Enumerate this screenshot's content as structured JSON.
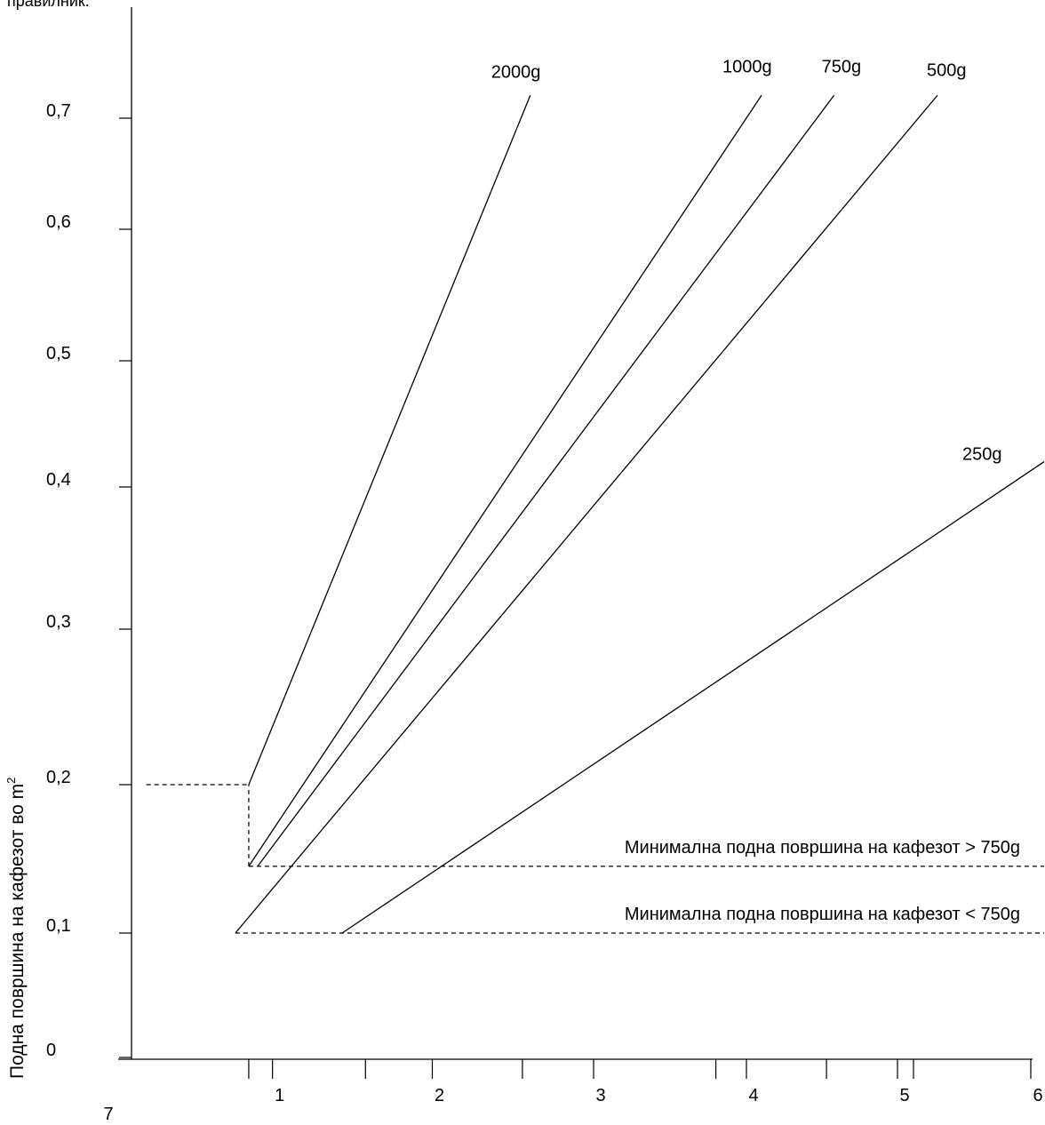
{
  "header_fragment": "правилник.",
  "chart_data": {
    "type": "line",
    "ylabel": "Подна површина на кафезот во m",
    "ylabel_superscript": "2",
    "ylim": [
      0,
      0.78
    ],
    "xlim": [
      0,
      6
    ],
    "y_ticks": [
      {
        "label": "0",
        "value": 0.0
      },
      {
        "label": "0,1",
        "value": 0.1
      },
      {
        "label": "0,2",
        "value": 0.2
      },
      {
        "label": "0,3",
        "value": 0.3
      },
      {
        "label": "0,4",
        "value": 0.4
      },
      {
        "label": "0,5",
        "value": 0.5
      },
      {
        "label": "0,6",
        "value": 0.6
      },
      {
        "label": "0,7",
        "value": 0.7
      }
    ],
    "x_ticks": [
      {
        "label": "1",
        "value": 0.95
      },
      {
        "label": "2",
        "value": 1.98
      },
      {
        "label": "3",
        "value": 3.0
      },
      {
        "label": "4",
        "value": 4.0
      },
      {
        "label": "5",
        "value": 5.0
      },
      {
        "label": "6",
        "value": 6.0
      }
    ],
    "x_minor_ticks": [
      0.79,
      1.55,
      2.55,
      3.8,
      4.53,
      5.12
    ],
    "x_extra_label": {
      "label": "7",
      "value": -0.13
    },
    "series": [
      {
        "name": "2000g",
        "points": [
          [
            0.79,
            0.2
          ],
          [
            2.6,
            0.72
          ]
        ]
      },
      {
        "name": "1000g",
        "points": [
          [
            0.79,
            0.145
          ],
          [
            4.1,
            0.72
          ]
        ]
      },
      {
        "name": "750g",
        "points": [
          [
            0.85,
            0.145
          ],
          [
            4.58,
            0.72
          ]
        ]
      },
      {
        "name": "500g",
        "points": [
          [
            0.7,
            0.1
          ],
          [
            5.3,
            0.72
          ]
        ]
      },
      {
        "name": "250g",
        "points": [
          [
            1.4,
            0.1
          ],
          [
            6.1,
            0.42
          ]
        ]
      }
    ],
    "reference_lines": [
      {
        "label": "Минимална подна површина на кафезот > 750g",
        "y": 0.145,
        "x_start": 0.79,
        "x_end": 6.1
      },
      {
        "label": "Минимална подна површина на кафезот < 750g",
        "y": 0.1,
        "x_start": 0.7,
        "x_end": 6.1
      },
      {
        "label": "",
        "y": 0.2,
        "x_start": 0.1,
        "x_end": 0.79
      }
    ],
    "guide_lines": [
      {
        "x": 0.79,
        "y_start": 0.145,
        "y_end": 0.2
      }
    ]
  }
}
